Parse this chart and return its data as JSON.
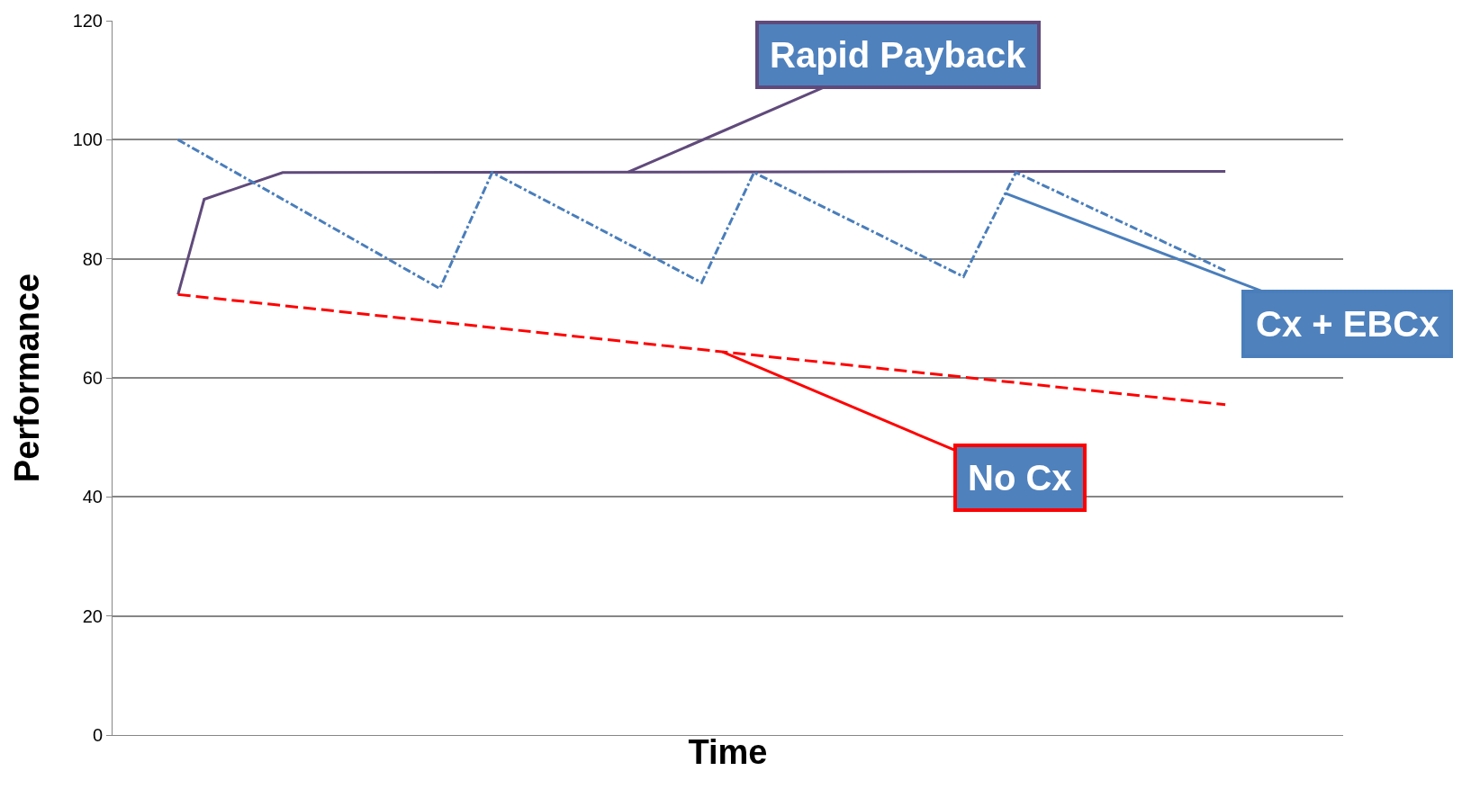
{
  "chart_data": {
    "type": "line",
    "xlabel": "Time",
    "ylabel": "Performance",
    "categories": [
      null,
      null,
      null,
      null,
      null,
      null,
      null,
      null,
      null,
      null,
      null,
      null,
      null,
      null,
      null,
      null,
      null,
      null,
      null,
      null,
      null,
      null,
      null,
      null,
      null,
      null,
      null,
      null,
      null,
      null,
      null,
      null,
      null,
      null,
      null,
      null,
      null,
      null,
      null,
      null,
      null,
      null,
      null,
      null,
      null,
      null,
      null
    ],
    "series": [
      {
        "name": "Rapid Payback",
        "color": "#604a7b",
        "line_style": "solid",
        "values": [
          null,
          null,
          74,
          90,
          null,
          null,
          94.5,
          null,
          null,
          null,
          null,
          null,
          null,
          null,
          null,
          null,
          null,
          null,
          null,
          null,
          null,
          null,
          null,
          null,
          null,
          null,
          null,
          null,
          null,
          null,
          null,
          null,
          null,
          null,
          null,
          null,
          null,
          null,
          null,
          null,
          null,
          null,
          94.7,
          null,
          null,
          null,
          null
        ]
      },
      {
        "name": "Cx + EBCx",
        "color": "#4a7ebb",
        "line_style": "dashdot",
        "values": [
          null,
          null,
          100,
          null,
          null,
          null,
          null,
          null,
          null,
          null,
          null,
          null,
          75,
          null,
          94.5,
          null,
          null,
          null,
          null,
          null,
          null,
          null,
          76,
          null,
          94.5,
          null,
          null,
          null,
          null,
          null,
          null,
          null,
          77,
          null,
          94.5,
          null,
          null,
          null,
          null,
          null,
          null,
          null,
          78,
          null,
          null,
          null,
          null
        ]
      },
      {
        "name": "No Cx",
        "color": "#ff0000",
        "line_style": "dashed",
        "values": [
          null,
          null,
          74,
          null,
          null,
          null,
          null,
          null,
          null,
          null,
          null,
          null,
          null,
          null,
          null,
          null,
          null,
          null,
          null,
          null,
          null,
          null,
          null,
          null,
          null,
          null,
          null,
          null,
          null,
          null,
          null,
          null,
          null,
          null,
          null,
          null,
          null,
          null,
          null,
          null,
          null,
          null,
          55.5,
          null,
          null,
          null,
          null
        ]
      }
    ],
    "ylim": [
      0,
      120
    ],
    "yticks": [
      0,
      20,
      40,
      60,
      80,
      100,
      120
    ],
    "grid": "y",
    "legend": false,
    "tick_labels": "y",
    "marker": "none"
  }
}
